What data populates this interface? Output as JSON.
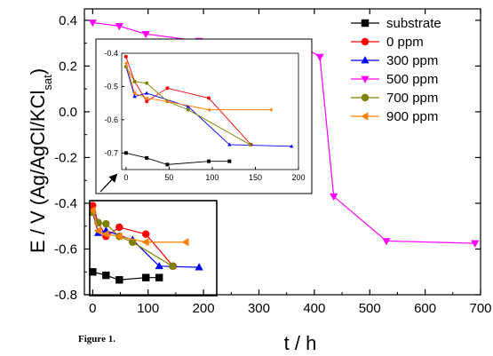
{
  "caption": "Figure 1.",
  "chart_data": {
    "type": "line",
    "xlabel": "t / h",
    "ylabel_main": "E / V (Ag/AgCl/KCl",
    "ylabel_sub": "sat",
    "ylabel_close": ")",
    "xlim": [
      -15,
      700
    ],
    "ylim": [
      -0.8,
      0.45
    ],
    "xticks": [
      "0",
      "100",
      "200",
      "300",
      "400",
      "500",
      "600",
      "700"
    ],
    "yticks": [
      "0.4",
      "0.2",
      "0.0",
      "-0.2",
      "-0.4",
      "-0.6",
      "-0.8"
    ],
    "legend_position": "top-right",
    "series": [
      {
        "name": "substrate",
        "color": "#000000",
        "marker": "square",
        "x": [
          0,
          24,
          48,
          96,
          120
        ],
        "y": [
          -0.7,
          -0.715,
          -0.735,
          -0.725,
          -0.725
        ]
      },
      {
        "name": "0 ppm",
        "color": "#ff0000",
        "marker": "circle",
        "x": [
          0,
          10,
          24,
          48,
          96,
          145
        ],
        "y": [
          -0.41,
          -0.485,
          -0.545,
          -0.505,
          -0.535,
          -0.675
        ]
      },
      {
        "name": "300 ppm",
        "color": "#0000ff",
        "marker": "triangle-up",
        "x": [
          0,
          10,
          24,
          72,
          120,
          192
        ],
        "y": [
          -0.44,
          -0.53,
          -0.52,
          -0.56,
          -0.675,
          -0.68
        ]
      },
      {
        "name": "500 ppm",
        "color": "#ff00ff",
        "marker": "triangle-down",
        "x": [
          0,
          48,
          96,
          192,
          288,
          370,
          410,
          435,
          530,
          690
        ],
        "y": [
          0.39,
          0.375,
          0.34,
          0.31,
          0.305,
          0.3,
          0.24,
          -0.37,
          -0.565,
          -0.575
        ]
      },
      {
        "name": "700 ppm",
        "color": "#808000",
        "marker": "circle",
        "x": [
          0,
          10,
          24,
          48,
          72,
          144
        ],
        "y": [
          -0.44,
          -0.485,
          -0.49,
          -0.545,
          -0.57,
          -0.675
        ]
      },
      {
        "name": "900 ppm",
        "color": "#ff8000",
        "marker": "triangle-left",
        "x": [
          0,
          10,
          24,
          48,
          96,
          168
        ],
        "y": [
          -0.43,
          -0.52,
          -0.535,
          -0.545,
          -0.57,
          -0.57
        ]
      }
    ],
    "inset": {
      "xlim": [
        -5,
        200
      ],
      "ylim": [
        -0.75,
        -0.4
      ],
      "xticks": [
        "0",
        "50",
        "100",
        "150",
        "200"
      ],
      "yticks": [
        "-0.4",
        "-0.5",
        "-0.6",
        "-0.7"
      ]
    }
  }
}
